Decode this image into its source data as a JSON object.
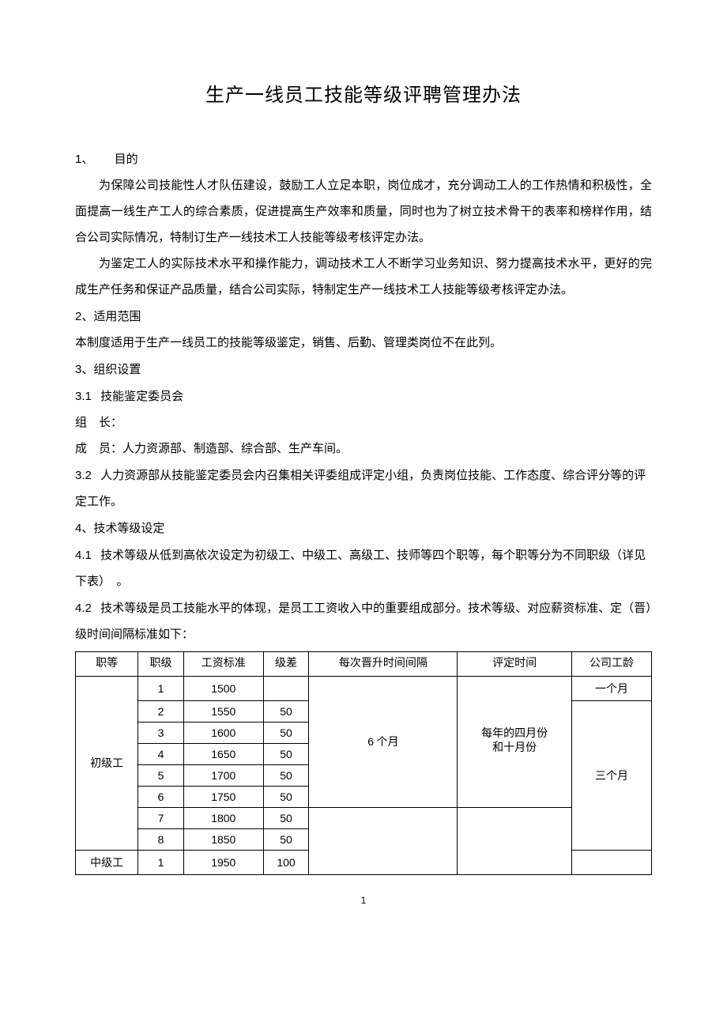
{
  "title": "生产一线员工技能等级评聘管理办法",
  "sections": {
    "s1_num": "1、",
    "s1_label": "目的",
    "s1_p1": "为保障公司技能性人才队伍建设，鼓励工人立足本职，岗位成才，充分调动工人的工作热情和积极性，全面提高一线生产工人的综合素质，促进提高生产效率和质量，同时也为了树立技术骨干的表率和榜样作用，结合公司实际情况，特制订生产一线技术工人技能等级考核评定办法。",
    "s1_p2": "为鉴定工人的实际技术水平和操作能力，调动技术工人不断学习业务知识、努力提高技术水平，更好的完成生产任务和保证产品质量，结合公司实际，特制定生产一线技术工人技能等级考核评定办法。",
    "s2_num": "2",
    "s2_label": "、适用范围",
    "s2_p1": "本制度适用于生产一线员工的技能等级鉴定，销售、后勤、管理类岗位不在此列。",
    "s3_num": "3",
    "s3_label": "、组织设置",
    "s31_num": "3.1",
    "s31_label": "技能鉴定委员会",
    "s31_a": "组　长：",
    "s31_b": "成　员：人力资源部、制造部、综合部、生产车间。",
    "s32_num": "3.2",
    "s32_label": "人力资源部从技能鉴定委员会内召集相关评委组成评定小组，负责岗位技能、工作态度、综合评分等的评定工作。",
    "s4_num": "4",
    "s4_label": "、技术等级设定",
    "s41_num": "4.1",
    "s41_label": "技术等级从低到高依次设定为初级工、中级工、高级工、技师等四个职等，每个职等分为不同职级（详见下表）　。",
    "s42_num": "4.2",
    "s42_label": "技术等级是员工技能水平的体现，是员工工资收入中的重要组成部分。技术等级、对应薪资标准、定（晋）级时间间隔标准如下："
  },
  "table": {
    "headers": [
      "职等",
      "职级",
      "工资标准",
      "级差",
      "每次晋升时间间隔",
      "评定时间",
      "公司工龄"
    ],
    "group1_label": "初级工",
    "group1_interval": "6 个月",
    "group1_evaltime": "每年的四月份和十月份",
    "group1_age1": "一个月",
    "group1_age2": "三个月",
    "group2_label": "中级工",
    "rows": [
      {
        "level": "1",
        "wage": "1500",
        "diff": ""
      },
      {
        "level": "2",
        "wage": "1550",
        "diff": "50"
      },
      {
        "level": "3",
        "wage": "1600",
        "diff": "50"
      },
      {
        "level": "4",
        "wage": "1650",
        "diff": "50"
      },
      {
        "level": "5",
        "wage": "1700",
        "diff": "50"
      },
      {
        "level": "6",
        "wage": "1750",
        "diff": "50"
      },
      {
        "level": "7",
        "wage": "1800",
        "diff": "50"
      },
      {
        "level": "8",
        "wage": "1850",
        "diff": "50"
      },
      {
        "level": "1",
        "wage": "1950",
        "diff": "100"
      }
    ]
  },
  "page_number": "1"
}
